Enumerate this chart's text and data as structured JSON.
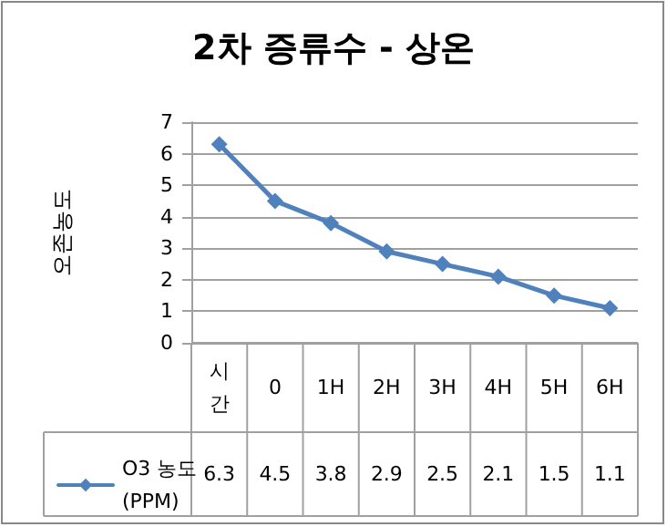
{
  "chart_data": {
    "type": "line",
    "title": "2차 증류수 - 상온",
    "ylabel": "오존농도",
    "categories": [
      "시간",
      "0",
      "1H",
      "2H",
      "3H",
      "4H",
      "5H",
      "6H"
    ],
    "series": [
      {
        "name": "O3 농도 (PPM)",
        "color": "#4f81bd",
        "values": [
          6.3,
          4.5,
          3.8,
          2.9,
          2.5,
          2.1,
          1.5,
          1.1
        ]
      }
    ],
    "ylim": [
      0,
      7
    ],
    "yticks": [
      0,
      1,
      2,
      3,
      4,
      5,
      6,
      7
    ],
    "grid": "y",
    "legend": "bottom",
    "marker": "diamond",
    "line_style": "solid",
    "data_labels": true
  }
}
